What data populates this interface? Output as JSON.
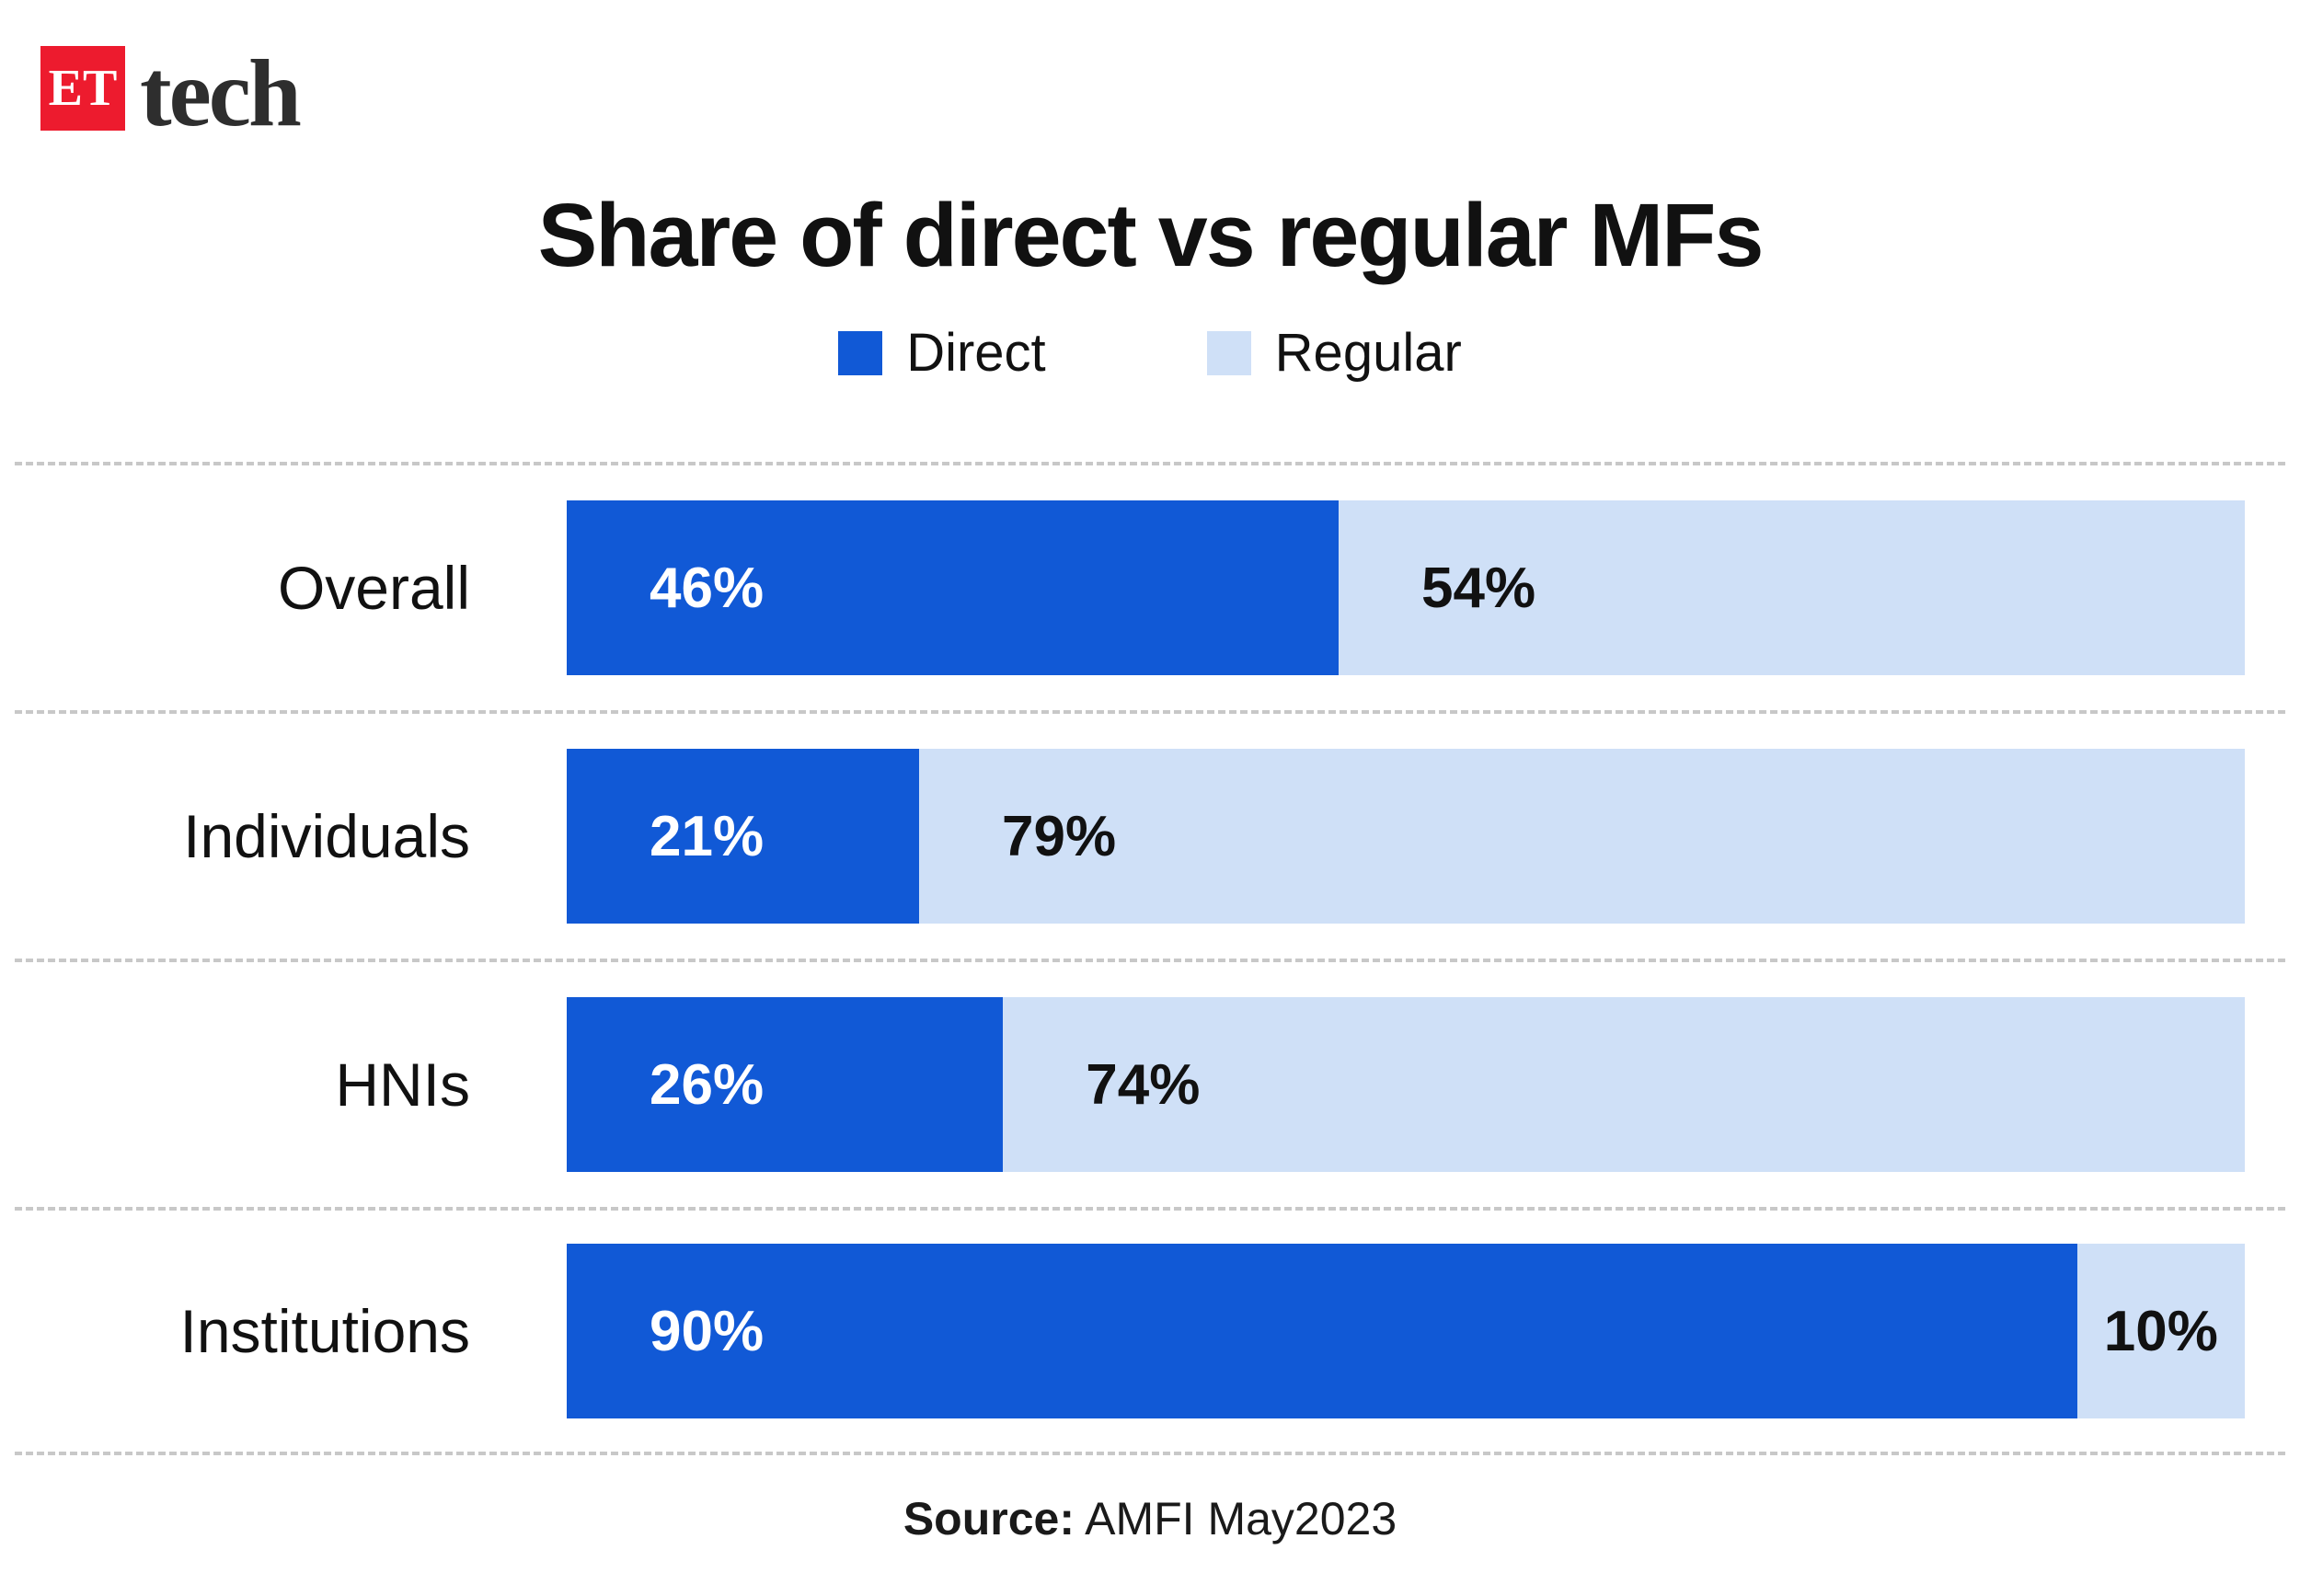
{
  "brand": {
    "logo_text": "ET",
    "name": "tech",
    "logo_color": "#ed1b2e"
  },
  "chart_data": {
    "type": "bar",
    "orientation": "horizontal",
    "stacked": true,
    "title": "Share of direct vs regular MFs",
    "categories": [
      "Overall",
      "Individuals",
      "HNIs",
      "Institutions"
    ],
    "series": [
      {
        "name": "Direct",
        "color": "#1159d6",
        "values": [
          46,
          21,
          26,
          90
        ]
      },
      {
        "name": "Regular",
        "color": "#cfe0f7",
        "values": [
          54,
          79,
          74,
          10
        ]
      }
    ],
    "value_suffix": "%",
    "xlim": [
      0,
      100
    ],
    "grid": "dashed-row-separators",
    "legend_position": "top",
    "source": "Source: AMFI May2023"
  },
  "footer": {
    "source_label": "Source:",
    "source_value": "AMFI May2023"
  }
}
